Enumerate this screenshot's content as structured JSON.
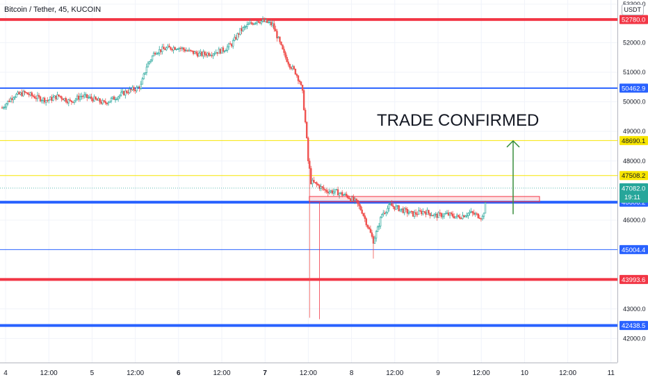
{
  "header": {
    "title": "Bitcoin / Tether, 45, KUCOIN",
    "currency": "USDT"
  },
  "chart_data": {
    "type": "candlestick",
    "symbol": "Bitcoin / Tether, 45, KUCOIN",
    "ylim": [
      41750,
      53300
    ],
    "y_ticks": [
      {
        "value": 53300,
        "label": "53300.0"
      },
      {
        "value": 52000,
        "label": "52000.0"
      },
      {
        "value": 51000,
        "label": "51000.0"
      },
      {
        "value": 50000,
        "label": "50000.0"
      },
      {
        "value": 49000,
        "label": "49000.0"
      },
      {
        "value": 48000,
        "label": "48000.0"
      },
      {
        "value": 46000,
        "label": "46000.0"
      },
      {
        "value": 44000,
        "label": "44000.0"
      },
      {
        "value": 43000,
        "label": "43000.0"
      },
      {
        "value": 42000,
        "label": "42000.0"
      }
    ],
    "x_ticks": [
      {
        "pos": 0,
        "label": "4"
      },
      {
        "pos": 1,
        "label": "12:00"
      },
      {
        "pos": 2,
        "label": "5"
      },
      {
        "pos": 3,
        "label": "12:00"
      },
      {
        "pos": 4,
        "label": "6",
        "bold": true
      },
      {
        "pos": 5,
        "label": "12:00"
      },
      {
        "pos": 6,
        "label": "7",
        "bold": true
      },
      {
        "pos": 7,
        "label": "12:00"
      },
      {
        "pos": 8,
        "label": "8"
      },
      {
        "pos": 9,
        "label": "12:00"
      },
      {
        "pos": 10,
        "label": "9"
      },
      {
        "pos": 11,
        "label": "12:00"
      },
      {
        "pos": 12,
        "label": "10"
      },
      {
        "pos": 13,
        "label": "12:00"
      },
      {
        "pos": 14,
        "label": "11"
      }
    ],
    "levels": [
      {
        "value": 52780.0,
        "label": "52780.0",
        "color": "#f23645",
        "weight": 4
      },
      {
        "value": 50462.9,
        "label": "50462.9",
        "color": "#2962ff",
        "weight": 2
      },
      {
        "value": 48690.1,
        "label": "48690.1",
        "color": "#f7e500",
        "weight": 1
      },
      {
        "value": 47508.2,
        "label": "47508.2",
        "color": "#f7e500",
        "weight": 1
      },
      {
        "value": 46606.2,
        "label": "46606.2",
        "color": "#2962ff",
        "weight": 4
      },
      {
        "value": 45004.4,
        "label": "45004.4",
        "color": "#2962ff",
        "weight": 1
      },
      {
        "value": 43993.6,
        "label": "43993.6",
        "color": "#f23645",
        "weight": 4
      },
      {
        "value": 42438.5,
        "label": "42438.5",
        "color": "#2962ff",
        "weight": 4
      }
    ],
    "last_price": {
      "value": 47082.0,
      "label": "47082.0",
      "countdown": "19:11",
      "color": "#26a69a"
    },
    "annotation": {
      "text": "TRADE CONFIRMED"
    },
    "trend": [
      [
        0,
        49800
      ],
      [
        8,
        50200
      ],
      [
        16,
        50300
      ],
      [
        24,
        50150
      ],
      [
        32,
        50050
      ],
      [
        40,
        50200
      ],
      [
        48,
        50000
      ],
      [
        56,
        50200
      ],
      [
        64,
        50100
      ],
      [
        72,
        49950
      ],
      [
        80,
        50150
      ],
      [
        88,
        50350
      ],
      [
        95,
        50450
      ],
      [
        98,
        50550
      ],
      [
        102,
        51200
      ],
      [
        108,
        51700
      ],
      [
        116,
        51800
      ],
      [
        124,
        51850
      ],
      [
        132,
        51700
      ],
      [
        140,
        51600
      ],
      [
        148,
        51650
      ],
      [
        156,
        51750
      ],
      [
        162,
        51950
      ],
      [
        168,
        52400
      ],
      [
        174,
        52600
      ],
      [
        180,
        52750
      ],
      [
        186,
        52700
      ],
      [
        191,
        52600
      ],
      [
        195,
        52100
      ],
      [
        199,
        51600
      ],
      [
        203,
        51250
      ],
      [
        207,
        51000
      ],
      [
        210,
        50700
      ],
      [
        212,
        50300
      ],
      [
        214,
        49300
      ],
      [
        216,
        48100
      ],
      [
        218,
        47300
      ],
      [
        222,
        47200
      ],
      [
        228,
        47000
      ],
      [
        236,
        46950
      ],
      [
        244,
        46800
      ],
      [
        250,
        46600
      ],
      [
        254,
        46300
      ],
      [
        258,
        45800
      ],
      [
        262,
        45300
      ],
      [
        265,
        45700
      ],
      [
        268,
        46200
      ],
      [
        274,
        46500
      ],
      [
        282,
        46350
      ],
      [
        290,
        46200
      ],
      [
        298,
        46300
      ],
      [
        306,
        46150
      ],
      [
        314,
        46200
      ],
      [
        322,
        46100
      ],
      [
        330,
        46250
      ],
      [
        336,
        46150
      ],
      [
        339,
        46100
      ],
      [
        341,
        46500
      ]
    ],
    "n_candles": 342,
    "seed": 7
  }
}
